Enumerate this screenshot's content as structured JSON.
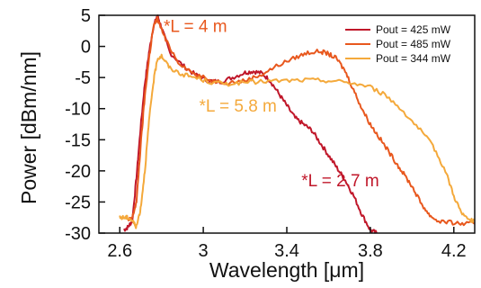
{
  "chart_data": {
    "type": "line",
    "title": "",
    "xlabel": "Wavelength [μm]",
    "ylabel": "Power [dBm/nm]",
    "xlim": [
      2.5,
      4.3
    ],
    "ylim": [
      -30,
      5
    ],
    "xticks": [
      2.6,
      3,
      3.4,
      3.8,
      4.2
    ],
    "xtick_labels": [
      "2.6",
      "3",
      "3.4",
      "3.8",
      "4.2"
    ],
    "yticks": [
      5,
      0,
      -5,
      -10,
      -15,
      -20,
      -25,
      -30
    ],
    "ytick_labels": [
      "5",
      "0",
      "-5",
      "-10",
      "-15",
      "-20",
      "-25",
      "-30"
    ],
    "grid": false,
    "legend_position": "top-right",
    "series": [
      {
        "name": "Pout = 425 mW",
        "color": "#c0172a",
        "x": [
          2.62,
          2.64,
          2.66,
          2.68,
          2.7,
          2.72,
          2.74,
          2.76,
          2.78,
          2.8,
          2.84,
          2.9,
          2.96,
          3.02,
          3.08,
          3.14,
          3.2,
          3.24,
          3.28,
          3.32,
          3.36,
          3.4,
          3.44,
          3.48,
          3.52,
          3.56,
          3.6,
          3.64,
          3.68,
          3.72,
          3.76,
          3.8,
          3.83
        ],
        "y": [
          -29.5,
          -29,
          -28,
          -21,
          -13,
          -6,
          -1,
          3,
          5,
          3,
          -1,
          -3,
          -4.5,
          -5.5,
          -5.7,
          -5,
          -4.2,
          -4,
          -4.3,
          -5.5,
          -7.5,
          -9.5,
          -11.5,
          -12.5,
          -13.5,
          -15.5,
          -17.5,
          -19.5,
          -21.5,
          -24,
          -27,
          -29.5,
          -30
        ]
      },
      {
        "name": "Pout = 485 mW",
        "color": "#e8581e",
        "x": [
          2.64,
          2.66,
          2.68,
          2.7,
          2.72,
          2.74,
          2.76,
          2.78,
          2.82,
          2.88,
          2.96,
          3.04,
          3.12,
          3.2,
          3.28,
          3.36,
          3.44,
          3.5,
          3.56,
          3.6,
          3.64,
          3.68,
          3.72,
          3.76,
          3.8,
          3.84,
          3.88,
          3.92,
          3.96,
          4.0,
          4.04,
          4.08,
          4.12,
          4.18,
          4.24,
          4.3
        ],
        "y": [
          -28,
          -27.5,
          -25,
          -16,
          -8,
          -2,
          3,
          4.5,
          1,
          -2.5,
          -4.5,
          -5.5,
          -5.8,
          -5.5,
          -4.5,
          -3,
          -1.8,
          -1,
          -0.8,
          -1.2,
          -2,
          -4,
          -7,
          -10,
          -12.5,
          -14.5,
          -16.5,
          -18.5,
          -20.5,
          -22.5,
          -25,
          -27,
          -28,
          -28.3,
          -28.5,
          -28.5
        ]
      },
      {
        "name": "Pout = 344 mW",
        "color": "#f4a93b",
        "x": [
          2.6,
          2.62,
          2.64,
          2.66,
          2.68,
          2.7,
          2.72,
          2.74,
          2.76,
          2.78,
          2.8,
          2.84,
          2.9,
          2.96,
          3.04,
          3.12,
          3.2,
          3.3,
          3.4,
          3.5,
          3.6,
          3.7,
          3.8,
          3.88,
          3.96,
          4.04,
          4.1,
          4.16,
          4.2,
          4.24,
          4.28,
          4.3
        ],
        "y": [
          -27.5,
          -27.5,
          -27.5,
          -28,
          -29,
          -26,
          -20,
          -12,
          -6,
          -2,
          -1.5,
          -3.5,
          -4.5,
          -5,
          -5.8,
          -6,
          -5.8,
          -5.6,
          -5.5,
          -5.4,
          -5.5,
          -5.8,
          -6.5,
          -8,
          -10.5,
          -13.5,
          -16,
          -20,
          -24,
          -27,
          -28,
          -28
        ]
      }
    ],
    "annotations": [
      {
        "text": "*L = 4 m",
        "color": "#e8581e",
        "x": 2.81,
        "y": 2.3
      },
      {
        "text": "*L = 5.8 m",
        "color": "#f4a93b",
        "x": 2.98,
        "y": -10.5
      },
      {
        "text": "*L = 2.7 m",
        "color": "#c0172a",
        "x": 3.47,
        "y": -22.5
      }
    ]
  }
}
